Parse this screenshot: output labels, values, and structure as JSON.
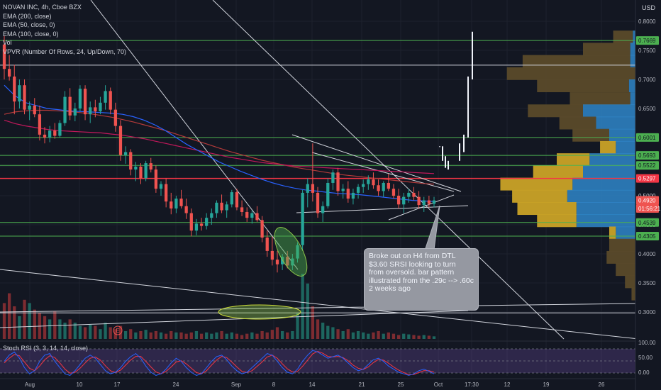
{
  "header": {
    "title": "NOVAN INC, 4h, Cboe BZX",
    "indicators": [
      "EMA (200, close)",
      "EMA (50, close, 0)",
      "EMA (100, close, 0)",
      "Vol",
      "VPVR (Number Of Rows, 24, Up/Down, 70)"
    ],
    "currency": "USD"
  },
  "rsi_legend": "Stoch RSI (3, 3, 14, 14, close)",
  "note": {
    "lines": [
      "Broke out on H4 from DTL",
      "$3.60 SRSI looking to turn",
      "from oversold. bar pattern",
      "illustrated from the .29c --> .60c",
      "2 weeks ago"
    ]
  },
  "colors": {
    "background": "#131722",
    "up": "#26a69a",
    "down": "#ef5350",
    "ema200": "#b33a3a",
    "ema50": "#2962ff",
    "ema100": "#c2185b",
    "green_level": "#4caf50",
    "red_level": "#f23645",
    "vp_up": "#2f86c9",
    "vp_down": "#c9a227",
    "rsi_k": "#2962ff",
    "rsi_d": "#f23645"
  },
  "chart_data": {
    "type": "candlestick",
    "yaxis": {
      "min": 0.27,
      "max": 0.82,
      "ticks": [
        "0.8000",
        "0.7500",
        "0.7000",
        "0.6500",
        "0.4500",
        "0.4000",
        "0.3500",
        "0.3000"
      ]
    },
    "xaxis": {
      "ticks": [
        "Aug",
        "10",
        "17",
        "24",
        "Sep",
        "8",
        "14",
        "21",
        "25",
        "Oct",
        "17:30",
        "12",
        "19",
        "26"
      ]
    },
    "price_labels": [
      {
        "text": "0.7669",
        "value": 0.7669,
        "kind": "green"
      },
      {
        "text": "0.6001",
        "value": 0.6001,
        "kind": "green"
      },
      {
        "text": "0.5693",
        "value": 0.5693,
        "kind": "green"
      },
      {
        "text": "0.5522",
        "value": 0.5522,
        "kind": "green"
      },
      {
        "text": "0.5297",
        "value": 0.5297,
        "kind": "red"
      },
      {
        "text": "0.5000",
        "value": 0.5,
        "kind": "plain"
      },
      {
        "text": "0.4920",
        "value": 0.492,
        "kind": "current"
      },
      {
        "text": "01:56:21",
        "value": 0.478,
        "kind": "timer"
      },
      {
        "text": "0.4539",
        "value": 0.4539,
        "kind": "green"
      },
      {
        "text": "0.4305",
        "value": 0.4305,
        "kind": "green"
      }
    ],
    "horizontal_lines": [
      {
        "value": 0.7669,
        "kind": "green"
      },
      {
        "value": 0.7245,
        "kind": "white"
      },
      {
        "value": 0.6001,
        "kind": "green"
      },
      {
        "value": 0.5693,
        "kind": "green"
      },
      {
        "value": 0.5522,
        "kind": "green"
      },
      {
        "value": 0.5297,
        "kind": "red"
      },
      {
        "value": 0.4539,
        "kind": "green"
      },
      {
        "value": 0.4305,
        "kind": "green"
      },
      {
        "value": 0.2985,
        "kind": "white"
      }
    ],
    "candles": [
      [
        0.76,
        0.775,
        0.7,
        0.718
      ],
      [
        0.718,
        0.742,
        0.698,
        0.705
      ],
      [
        0.705,
        0.725,
        0.64,
        0.662
      ],
      [
        0.662,
        0.7,
        0.65,
        0.69
      ],
      [
        0.69,
        0.7,
        0.64,
        0.648
      ],
      [
        0.648,
        0.662,
        0.63,
        0.655
      ],
      [
        0.655,
        0.668,
        0.635,
        0.64
      ],
      [
        0.64,
        0.655,
        0.595,
        0.605
      ],
      [
        0.605,
        0.618,
        0.59,
        0.6
      ],
      [
        0.6,
        0.62,
        0.592,
        0.612
      ],
      [
        0.612,
        0.625,
        0.598,
        0.603
      ],
      [
        0.603,
        0.63,
        0.6,
        0.625
      ],
      [
        0.625,
        0.68,
        0.62,
        0.67
      ],
      [
        0.67,
        0.685,
        0.63,
        0.638
      ],
      [
        0.638,
        0.66,
        0.628,
        0.65
      ],
      [
        0.65,
        0.69,
        0.645,
        0.684
      ],
      [
        0.684,
        0.69,
        0.63,
        0.64
      ],
      [
        0.64,
        0.662,
        0.625,
        0.652
      ],
      [
        0.652,
        0.665,
        0.635,
        0.645
      ],
      [
        0.645,
        0.67,
        0.64,
        0.66
      ],
      [
        0.66,
        0.69,
        0.648,
        0.68
      ],
      [
        0.68,
        0.686,
        0.64,
        0.648
      ],
      [
        0.648,
        0.66,
        0.61,
        0.62
      ],
      [
        0.62,
        0.63,
        0.56,
        0.57
      ],
      [
        0.57,
        0.585,
        0.555,
        0.575
      ],
      [
        0.575,
        0.58,
        0.535,
        0.545
      ],
      [
        0.545,
        0.558,
        0.525,
        0.55
      ],
      [
        0.55,
        0.556,
        0.52,
        0.53
      ],
      [
        0.53,
        0.56,
        0.525,
        0.556
      ],
      [
        0.556,
        0.565,
        0.54,
        0.545
      ],
      [
        0.545,
        0.552,
        0.505,
        0.512
      ],
      [
        0.512,
        0.525,
        0.5,
        0.52
      ],
      [
        0.52,
        0.53,
        0.48,
        0.49
      ],
      [
        0.49,
        0.505,
        0.468,
        0.478
      ],
      [
        0.478,
        0.5,
        0.47,
        0.495
      ],
      [
        0.495,
        0.51,
        0.478,
        0.482
      ],
      [
        0.482,
        0.495,
        0.46,
        0.47
      ],
      [
        0.47,
        0.478,
        0.43,
        0.44
      ],
      [
        0.44,
        0.46,
        0.432,
        0.452
      ],
      [
        0.452,
        0.462,
        0.44,
        0.448
      ],
      [
        0.448,
        0.47,
        0.442,
        0.462
      ],
      [
        0.462,
        0.478,
        0.45,
        0.47
      ],
      [
        0.47,
        0.492,
        0.462,
        0.488
      ],
      [
        0.488,
        0.502,
        0.47,
        0.475
      ],
      [
        0.475,
        0.49,
        0.462,
        0.485
      ],
      [
        0.485,
        0.51,
        0.48,
        0.506
      ],
      [
        0.506,
        0.512,
        0.475,
        0.48
      ],
      [
        0.48,
        0.492,
        0.465,
        0.472
      ],
      [
        0.472,
        0.48,
        0.455,
        0.462
      ],
      [
        0.462,
        0.475,
        0.452,
        0.47
      ],
      [
        0.47,
        0.482,
        0.455,
        0.458
      ],
      [
        0.458,
        0.465,
        0.42,
        0.428
      ],
      [
        0.428,
        0.44,
        0.395,
        0.405
      ],
      [
        0.405,
        0.43,
        0.38,
        0.39
      ],
      [
        0.39,
        0.405,
        0.368,
        0.382
      ],
      [
        0.382,
        0.4,
        0.372,
        0.395
      ],
      [
        0.395,
        0.405,
        0.375,
        0.38
      ],
      [
        0.38,
        0.4,
        0.372,
        0.392
      ],
      [
        0.392,
        0.42,
        0.385,
        0.415
      ],
      [
        0.415,
        0.51,
        0.405,
        0.505
      ],
      [
        0.505,
        0.53,
        0.48,
        0.52
      ],
      [
        0.52,
        0.59,
        0.49,
        0.505
      ],
      [
        0.505,
        0.515,
        0.462,
        0.47
      ],
      [
        0.47,
        0.49,
        0.455,
        0.482
      ],
      [
        0.482,
        0.53,
        0.478,
        0.522
      ],
      [
        0.522,
        0.545,
        0.51,
        0.54
      ],
      [
        0.54,
        0.548,
        0.5,
        0.508
      ],
      [
        0.508,
        0.52,
        0.495,
        0.512
      ],
      [
        0.512,
        0.525,
        0.488,
        0.495
      ],
      [
        0.495,
        0.512,
        0.485,
        0.505
      ],
      [
        0.505,
        0.52,
        0.495,
        0.515
      ],
      [
        0.515,
        0.528,
        0.505,
        0.52
      ],
      [
        0.52,
        0.535,
        0.51,
        0.528
      ],
      [
        0.528,
        0.54,
        0.512,
        0.518
      ],
      [
        0.518,
        0.528,
        0.5,
        0.508
      ],
      [
        0.508,
        0.525,
        0.498,
        0.522
      ],
      [
        0.522,
        0.538,
        0.508,
        0.512
      ],
      [
        0.512,
        0.52,
        0.495,
        0.5
      ],
      [
        0.5,
        0.512,
        0.478,
        0.485
      ],
      [
        0.485,
        0.505,
        0.47,
        0.498
      ],
      [
        0.498,
        0.512,
        0.488,
        0.505
      ],
      [
        0.505,
        0.515,
        0.492,
        0.498
      ],
      [
        0.498,
        0.508,
        0.478,
        0.484
      ],
      [
        0.484,
        0.498,
        0.472,
        0.492
      ],
      [
        0.492,
        0.5,
        0.48,
        0.486
      ],
      [
        0.486,
        0.498,
        0.48,
        0.492
      ]
    ],
    "projection_bars": [
      [
        0.585,
        0.585
      ],
      [
        0.56,
        0.585
      ],
      [
        0.548,
        0.568
      ],
      [
        0.545,
        0.56
      ],
      [
        0.56,
        0.59
      ],
      [
        0.575,
        0.605
      ],
      [
        0.6,
        0.705
      ],
      [
        0.7,
        0.782
      ]
    ],
    "ema50": [
      0.69,
      0.672,
      0.66,
      0.655,
      0.65,
      0.648,
      0.646,
      0.645,
      0.644,
      0.643,
      0.642,
      0.64,
      0.636,
      0.63,
      0.622,
      0.612,
      0.6,
      0.588,
      0.578,
      0.568,
      0.558,
      0.55,
      0.542,
      0.535,
      0.528,
      0.522,
      0.517,
      0.513,
      0.51,
      0.508,
      0.506,
      0.504,
      0.503,
      0.502,
      0.5,
      0.498,
      0.496,
      0.494,
      0.492,
      0.491,
      0.49
    ],
    "ema100": [
      0.63,
      0.624,
      0.62,
      0.617,
      0.614,
      0.612,
      0.611,
      0.61,
      0.609,
      0.608,
      0.606,
      0.604,
      0.601,
      0.598,
      0.594,
      0.59,
      0.586,
      0.582,
      0.578,
      0.574,
      0.57,
      0.566,
      0.563,
      0.56,
      0.557,
      0.555,
      0.553,
      0.551,
      0.55,
      0.549,
      0.548,
      0.547,
      0.546,
      0.545,
      0.544,
      0.543,
      0.542,
      0.541,
      0.54,
      0.539,
      0.538
    ],
    "ema200": [
      0.64,
      0.644,
      0.646,
      0.647,
      0.647,
      0.646,
      0.645,
      0.643,
      0.641,
      0.638,
      0.635,
      0.631,
      0.627,
      0.622,
      0.617,
      0.612,
      0.606,
      0.6,
      0.594,
      0.588,
      0.582,
      0.576,
      0.571,
      0.566,
      0.561,
      0.557,
      0.553,
      0.549,
      0.546,
      0.543,
      0.54,
      0.537,
      0.535,
      0.533,
      0.531,
      0.529,
      0.527,
      0.525,
      0.523,
      0.521,
      0.52
    ],
    "volume": [
      0.55,
      0.7,
      0.5,
      0.35,
      0.6,
      0.55,
      0.45,
      0.4,
      0.35,
      0.3,
      0.42,
      0.3,
      0.25,
      0.3,
      0.25,
      0.2,
      0.18,
      0.22,
      0.2,
      0.15,
      0.25,
      0.18,
      0.15,
      0.2,
      0.12,
      0.15,
      0.1,
      0.12,
      0.14,
      0.1,
      0.12,
      0.1,
      0.08,
      0.12,
      0.1,
      0.1,
      0.08,
      0.1,
      0.12,
      0.08,
      0.1,
      0.08,
      0.1,
      0.12,
      0.08,
      0.1,
      0.08,
      0.06,
      0.08,
      0.1,
      0.08,
      0.12,
      0.1,
      0.14,
      0.18,
      0.12,
      0.1,
      0.12,
      0.4,
      1.0,
      0.85,
      0.5,
      0.3,
      0.25,
      0.2,
      0.18,
      0.15,
      0.12,
      0.15,
      0.1,
      0.12,
      0.1,
      0.08,
      0.1,
      0.12,
      0.08,
      0.1,
      0.08,
      0.06,
      0.08,
      0.07,
      0.06,
      0.05,
      0.06,
      0.05,
      0.04
    ],
    "volume_profile": [
      {
        "price": 0.773,
        "up": 0.02,
        "down": 0.15
      },
      {
        "price": 0.752,
        "up": 0.04,
        "down": 0.36
      },
      {
        "price": 0.731,
        "up": 0.04,
        "down": 0.82
      },
      {
        "price": 0.71,
        "up": 0.0,
        "down": 0.98
      },
      {
        "price": 0.689,
        "up": 0.05,
        "down": 0.7
      },
      {
        "price": 0.667,
        "up": 0.04,
        "down": 0.46
      },
      {
        "price": 0.646,
        "up": 0.4,
        "down": 0.42
      },
      {
        "price": 0.625,
        "up": 0.3,
        "down": 0.28
      },
      {
        "price": 0.604,
        "up": 0.2,
        "down": 0.28
      },
      {
        "price": 0.583,
        "up": 0.15,
        "down": 0.12
      },
      {
        "price": 0.562,
        "up": 0.35,
        "down": 0.25
      },
      {
        "price": 0.541,
        "up": 0.4,
        "down": 0.38
      },
      {
        "price": 0.52,
        "up": 0.48,
        "down": 0.55
      },
      {
        "price": 0.499,
        "up": 0.52,
        "down": 0.42
      },
      {
        "price": 0.478,
        "up": 0.45,
        "down": 0.45
      },
      {
        "price": 0.457,
        "up": 0.45,
        "down": 0.3
      },
      {
        "price": 0.436,
        "up": 0.15,
        "down": 0.05
      },
      {
        "price": 0.415,
        "up": 0.0,
        "down": 0.2
      },
      {
        "price": 0.394,
        "up": 0.0,
        "down": 0.22
      },
      {
        "price": 0.373,
        "up": 0.0,
        "down": 0.15
      },
      {
        "price": 0.352,
        "up": 0.0,
        "down": 0.08
      },
      {
        "price": 0.331,
        "up": 0.0,
        "down": 0.03
      }
    ],
    "stoch_rsi": {
      "ticks": [
        "100.00",
        "50.00",
        "0.00"
      ],
      "k": [
        60,
        80,
        90,
        70,
        40,
        20,
        30,
        60,
        80,
        85,
        60,
        40,
        20,
        15,
        30,
        50,
        70,
        80,
        70,
        50,
        30,
        20,
        25,
        40,
        60,
        75,
        85,
        70,
        45,
        25,
        15,
        20,
        35,
        55,
        70,
        60,
        40,
        25,
        15,
        20,
        40,
        60,
        75,
        80,
        65,
        45,
        30,
        20,
        25,
        40,
        55,
        70,
        85,
        80,
        60,
        40,
        25,
        20,
        35,
        60,
        80,
        95,
        90,
        80,
        70,
        75,
        80,
        70,
        55,
        40,
        30,
        35,
        50,
        65,
        70,
        60,
        45,
        35,
        25,
        20,
        15,
        20,
        30,
        35,
        28,
        20
      ],
      "d": [
        55,
        70,
        82,
        78,
        58,
        38,
        30,
        45,
        65,
        78,
        72,
        55,
        35,
        22,
        25,
        38,
        55,
        70,
        74,
        64,
        46,
        30,
        24,
        32,
        48,
        64,
        76,
        76,
        60,
        42,
        26,
        20,
        28,
        42,
        58,
        62,
        52,
        38,
        24,
        20,
        30,
        48,
        64,
        76,
        72,
        58,
        42,
        28,
        24,
        30,
        44,
        58,
        74,
        80,
        70,
        52,
        36,
        26,
        28,
        44,
        64,
        84,
        92,
        86,
        76,
        74,
        76,
        72,
        62,
        48,
        38,
        34,
        42,
        56,
        66,
        64,
        54,
        42,
        32,
        24,
        18,
        18,
        24,
        30,
        30,
        25
      ]
    }
  }
}
